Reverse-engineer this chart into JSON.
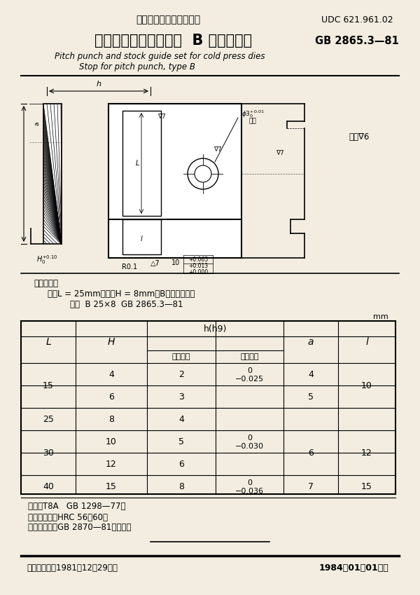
{
  "header_cn": "中华人民共和国国家标准",
  "udc": "UDC 621.961.02",
  "title_cn": "冷冲模侧刃和导料装置  B 型侧刃挡块",
  "std_no": "GB 2865.3—81",
  "title_en1": "Pitch punch and stock guide set for cold press dies",
  "title_en2": "Stop for pitch punch, type B",
  "note_label": "标记示例：",
  "note_line1": "长度L = 25mm、厚度H = 8mm的B型侧刃挡块：",
  "note_line2": "挡块  B 25×8  GB 2865.3—81",
  "unit": "mm",
  "mat_line1": "材料：T8A   GB 1298—77。",
  "mat_line2": "热处理：硬度HRC 56～60。",
  "mat_line3": "技术条件：按GB 2870—81的规定。",
  "footer_left": "国家标准总局1981－12－29发布",
  "footer_right": "1984－01－01实施",
  "bg_color": "#f2ede0"
}
